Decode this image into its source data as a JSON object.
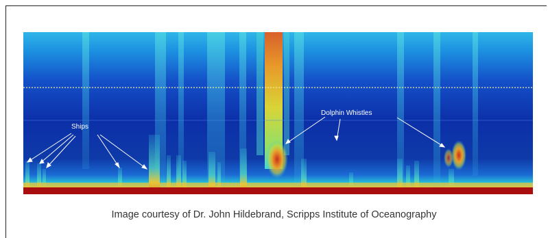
{
  "image": {
    "subject": "spectrogram",
    "annotations": {
      "ships": "Ships",
      "dolphin_whistles": "Dolphin Whistles"
    },
    "caption": "Image courtesy of Dr. John Hildebrand, Scripps Institute of Oceanography"
  },
  "colors": {
    "deep_blue": "#0a2a9e",
    "mid_blue": "#1a5bd6",
    "cyan": "#2fd0e6",
    "yellow": "#e8e23a",
    "orange": "#e8761c",
    "red": "#a80e0e"
  }
}
